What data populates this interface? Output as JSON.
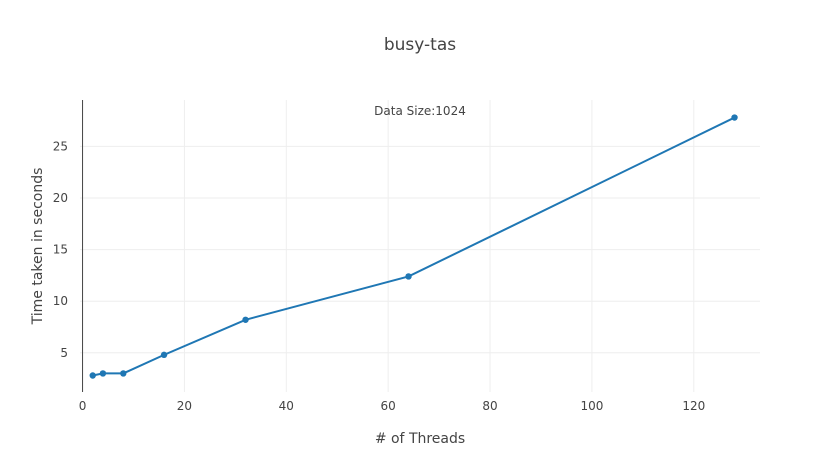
{
  "chart_data": {
    "type": "line",
    "title": "busy-tas",
    "xlabel": "# of Threads",
    "ylabel": "Time taken in seconds",
    "annotation": "Data Size:1024",
    "xlim": [
      -0.5,
      133
    ],
    "ylim": [
      1.2,
      29.5
    ],
    "xticks": [
      0,
      20,
      40,
      60,
      80,
      100,
      120
    ],
    "yticks": [
      5,
      10,
      15,
      20,
      25
    ],
    "grid": true,
    "legend": "none",
    "color": "#1f77b4",
    "series": [
      {
        "x": [
          2,
          4,
          8,
          16,
          32,
          64,
          128
        ],
        "y": [
          2.8,
          3.0,
          3.0,
          4.8,
          8.2,
          12.4,
          27.8
        ]
      }
    ]
  }
}
